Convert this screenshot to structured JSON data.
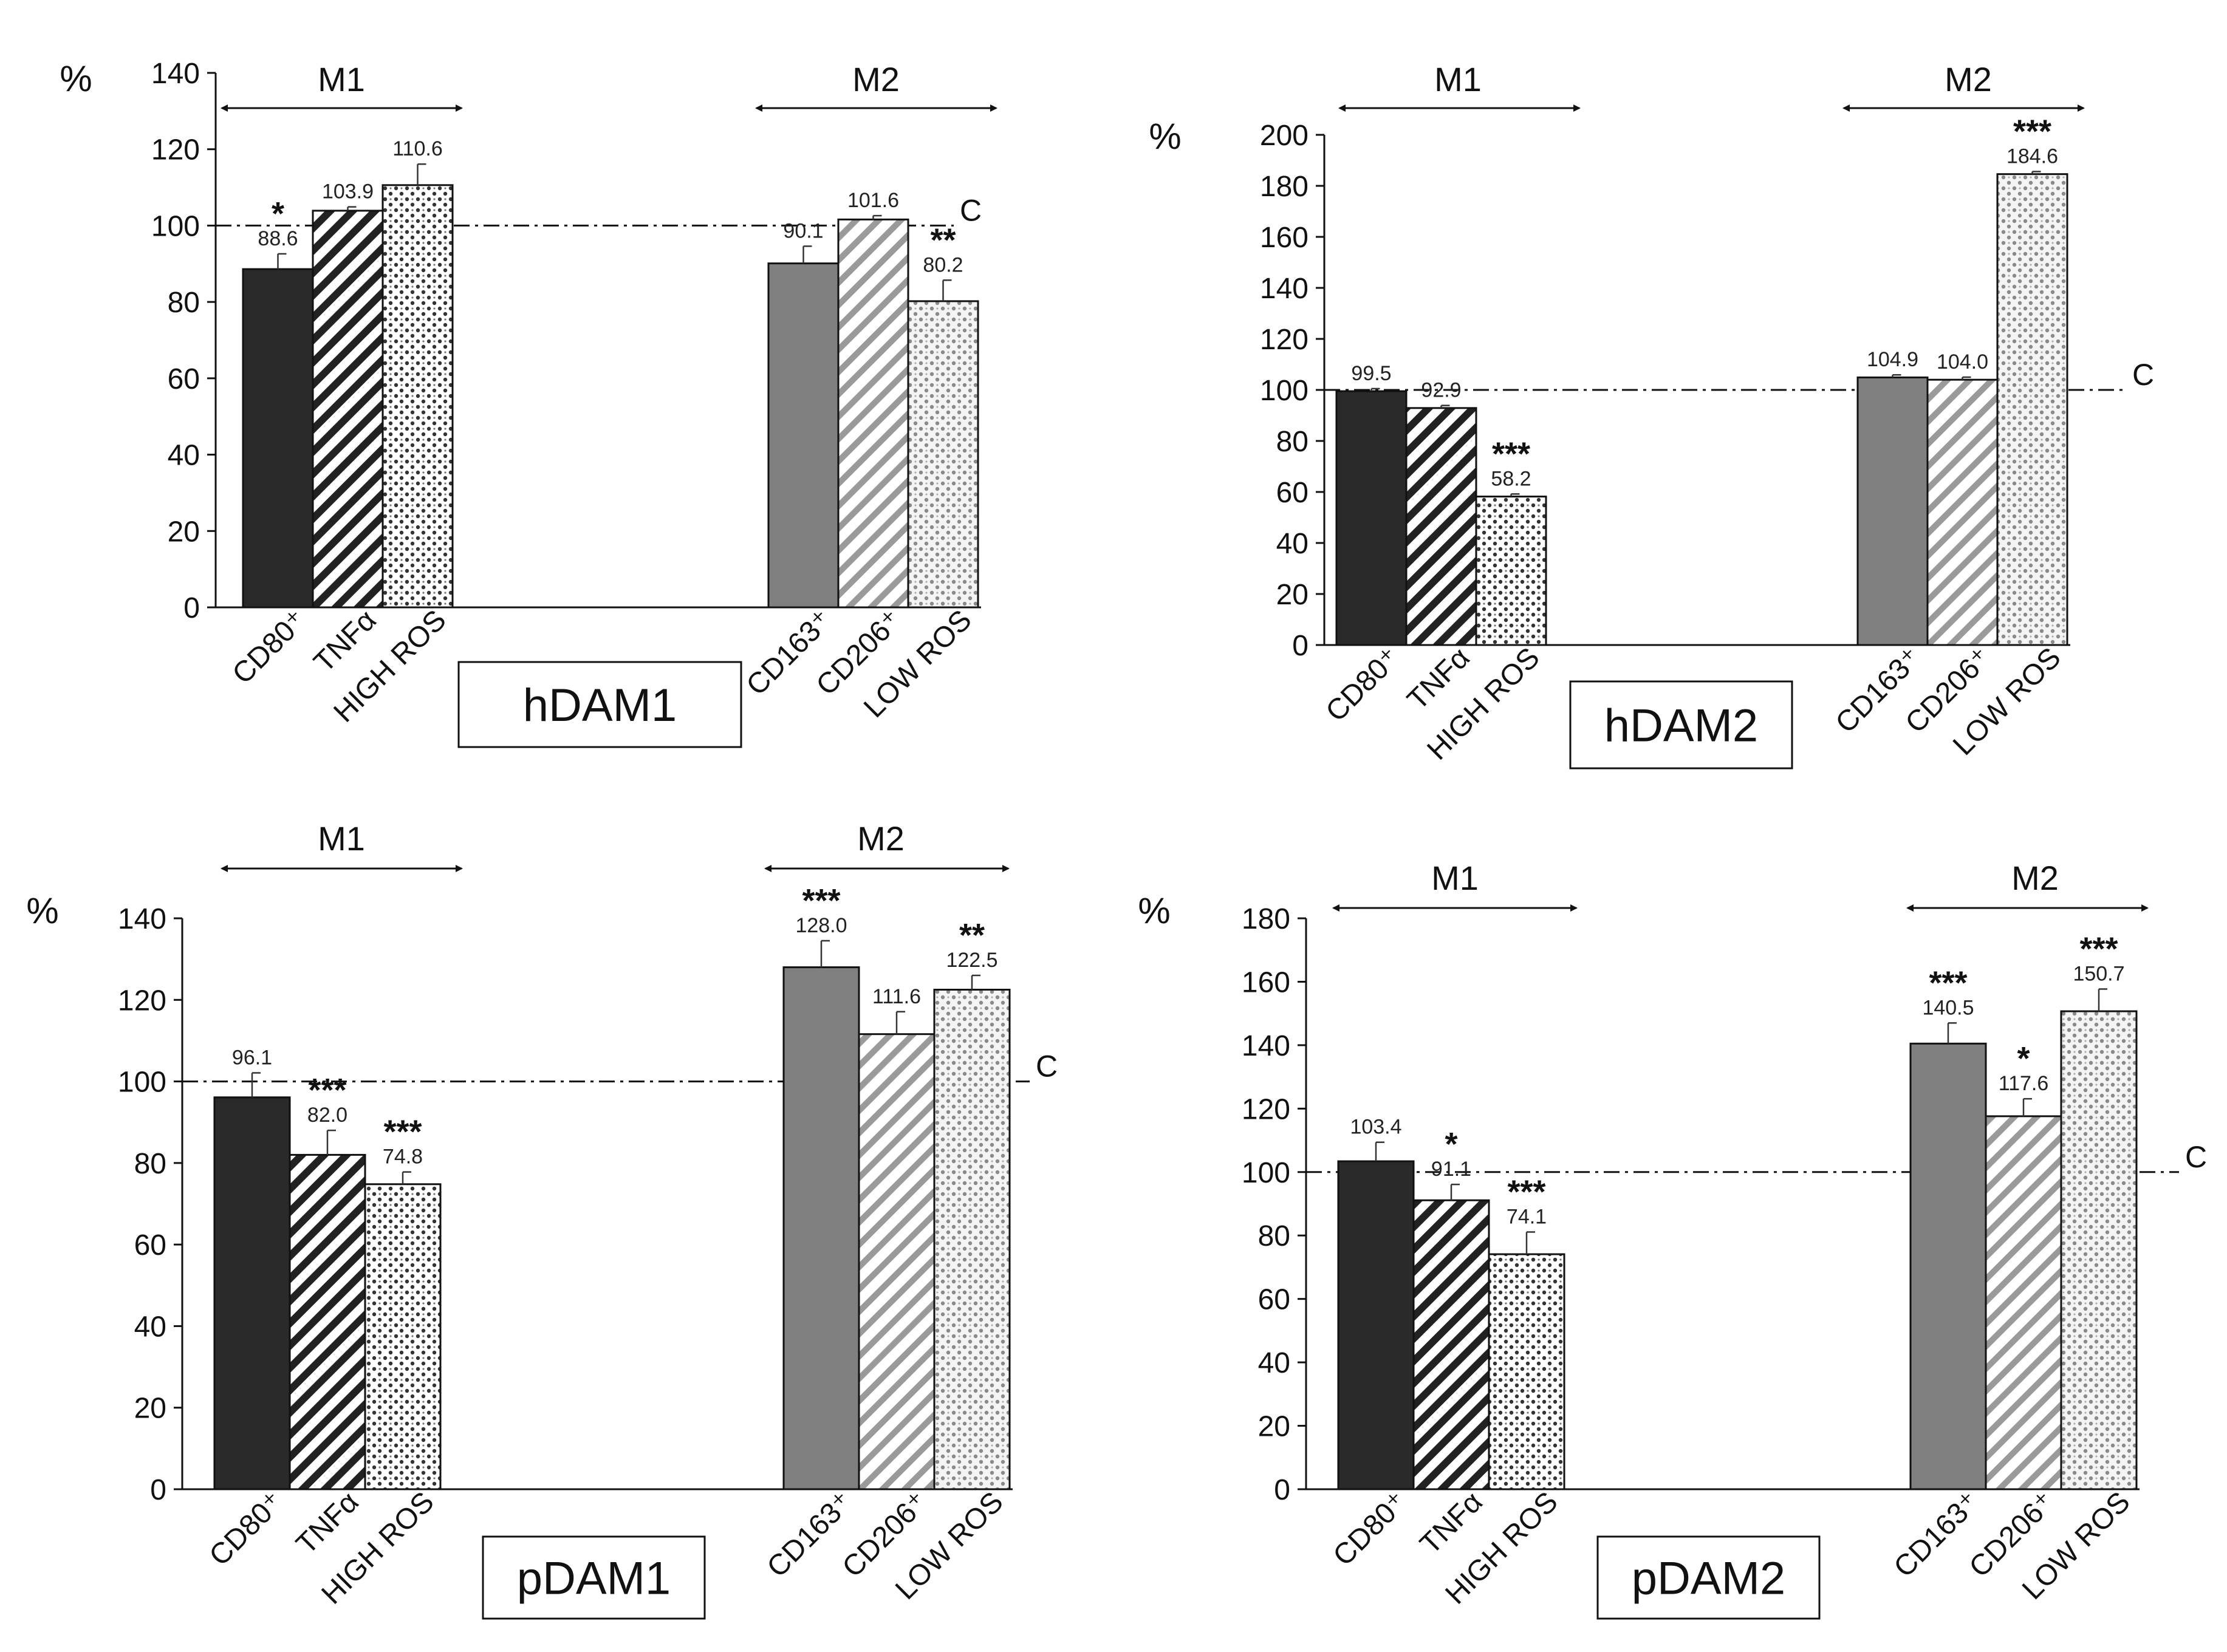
{
  "colors": {
    "cd80": "#2a2a2a",
    "cd163": "#808080",
    "axis": "#111111",
    "dots": "#555555"
  },
  "chart_data": [
    {
      "type": "bar",
      "title": "hDAM1",
      "ylabel": "%",
      "ylim": [
        0,
        140
      ],
      "yticks": [
        "0",
        "20",
        "40",
        "60",
        "80",
        "100",
        "120",
        "140"
      ],
      "control_label": "C",
      "control_value": 100,
      "groups": [
        {
          "name": "M1"
        },
        {
          "name": "M2"
        }
      ],
      "categories": [
        "CD80⁺",
        "TNFα",
        "HIGH ROS",
        "CD163⁺",
        "CD206⁺",
        "LOW ROS"
      ],
      "values": [
        88.6,
        103.9,
        110.6,
        90.1,
        101.6,
        80.2
      ],
      "value_labels": [
        "88.6",
        "103.9",
        "110.6",
        "90.1",
        "101.6",
        "80.2"
      ],
      "errors": [
        4,
        1,
        5.5,
        4.5,
        1,
        5.5
      ],
      "significance": [
        "*",
        "",
        "",
        "",
        "",
        "**"
      ]
    },
    {
      "type": "bar",
      "title": "hDAM2",
      "ylabel": "%",
      "ylim": [
        0,
        200
      ],
      "yticks": [
        "0",
        "20",
        "40",
        "60",
        "80",
        "100",
        "120",
        "140",
        "160",
        "180",
        "200"
      ],
      "control_label": "C",
      "control_value": 100,
      "groups": [
        {
          "name": "M1"
        },
        {
          "name": "M2"
        }
      ],
      "categories": [
        "CD80⁺",
        "TNFα",
        "HIGH ROS",
        "CD163⁺",
        "CD206⁺",
        "LOW ROS"
      ],
      "values": [
        99.5,
        92.9,
        58.2,
        104.9,
        104.0,
        184.6
      ],
      "value_labels": [
        "99.5",
        "92.9",
        "58.2",
        "104.9",
        "104.0",
        "184.6"
      ],
      "errors": [
        1,
        1,
        1,
        1,
        1,
        1
      ],
      "significance": [
        "",
        "",
        "***",
        "",
        "",
        "***"
      ]
    },
    {
      "type": "bar",
      "title": "pDAM1",
      "ylabel": "%",
      "ylim": [
        0,
        140
      ],
      "yticks": [
        "0",
        "20",
        "40",
        "60",
        "80",
        "100",
        "120",
        "140"
      ],
      "control_label": "C",
      "control_value": 100,
      "groups": [
        {
          "name": "M1"
        },
        {
          "name": "M2"
        }
      ],
      "categories": [
        "CD80⁺",
        "TNFα",
        "HIGH ROS",
        "CD163⁺",
        "CD206⁺",
        "LOW ROS"
      ],
      "values": [
        96.1,
        82.0,
        74.8,
        128.0,
        111.6,
        122.5
      ],
      "value_labels": [
        "96.1",
        "82.0",
        "74.8",
        "128.0",
        "111.6",
        "122.5"
      ],
      "errors": [
        6,
        6,
        3,
        6.5,
        5.5,
        3.5
      ],
      "significance": [
        "",
        "***",
        "***",
        "***",
        "",
        "**"
      ]
    },
    {
      "type": "bar",
      "title": "pDAM2",
      "ylabel": "%",
      "ylim": [
        0,
        180
      ],
      "yticks": [
        "0",
        "20",
        "40",
        "60",
        "80",
        "100",
        "120",
        "140",
        "160",
        "180"
      ],
      "control_label": "C",
      "control_value": 100,
      "groups": [
        {
          "name": "M1"
        },
        {
          "name": "M2"
        }
      ],
      "categories": [
        "CD80⁺",
        "TNFα",
        "HIGH ROS",
        "CD163⁺",
        "CD206⁺",
        "LOW ROS"
      ],
      "values": [
        103.4,
        91.1,
        74.1,
        140.5,
        117.6,
        150.7
      ],
      "value_labels": [
        "103.4",
        "91.1",
        "74.1",
        "140.5",
        "117.6",
        "150.7"
      ],
      "errors": [
        6,
        5,
        7,
        6.5,
        5.5,
        7
      ],
      "significance": [
        "",
        "*",
        "***",
        "***",
        "*",
        "***"
      ]
    }
  ]
}
